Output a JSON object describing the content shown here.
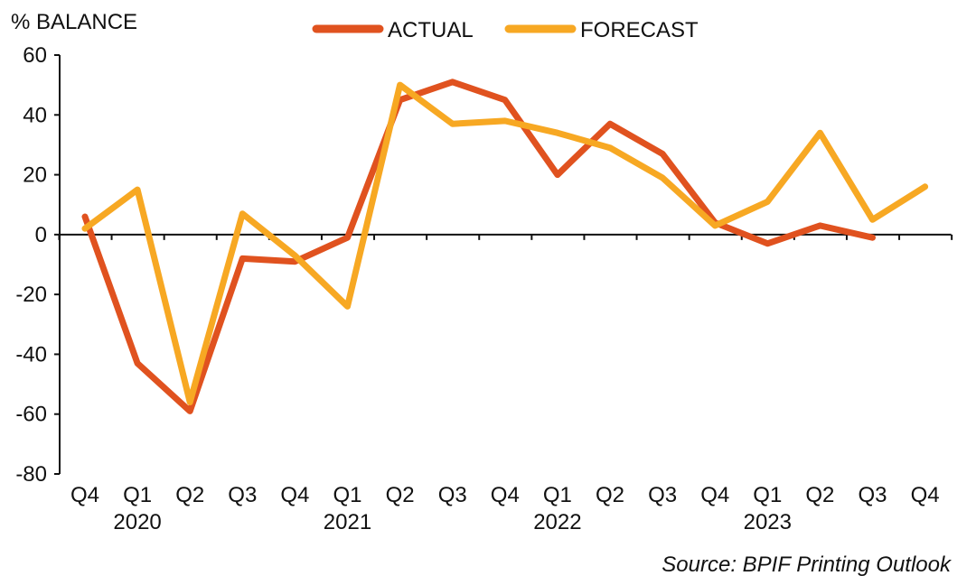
{
  "chart_data": {
    "type": "line",
    "ylabel": "% BALANCE",
    "ylim": [
      -80,
      60
    ],
    "yticks": [
      60,
      40,
      20,
      0,
      -20,
      -40,
      -60,
      -80
    ],
    "categories": [
      "Q4",
      "Q1",
      "Q2",
      "Q3",
      "Q4",
      "Q1",
      "Q2",
      "Q3",
      "Q4",
      "Q1",
      "Q2",
      "Q3",
      "Q4",
      "Q1",
      "Q2",
      "Q3",
      "Q4"
    ],
    "year_labels": [
      {
        "label": "2020",
        "index": 1
      },
      {
        "label": "2021",
        "index": 5
      },
      {
        "label": "2022",
        "index": 9
      },
      {
        "label": "2023",
        "index": 13
      }
    ],
    "series": [
      {
        "name": "ACTUAL",
        "color": "#E0521F",
        "values": [
          6,
          -43,
          -59,
          -8,
          -9,
          -1,
          45,
          51,
          45,
          20,
          37,
          27,
          4,
          -3,
          3,
          -1,
          null
        ]
      },
      {
        "name": "FORECAST",
        "color": "#F7A823",
        "values": [
          2,
          15,
          -56,
          7,
          -7,
          -24,
          50,
          37,
          38,
          34,
          29,
          19,
          3,
          11,
          34,
          5,
          16
        ]
      }
    ],
    "legend_position": "top-center",
    "grid": false,
    "source": "Source: BPIF Printing Outlook"
  }
}
